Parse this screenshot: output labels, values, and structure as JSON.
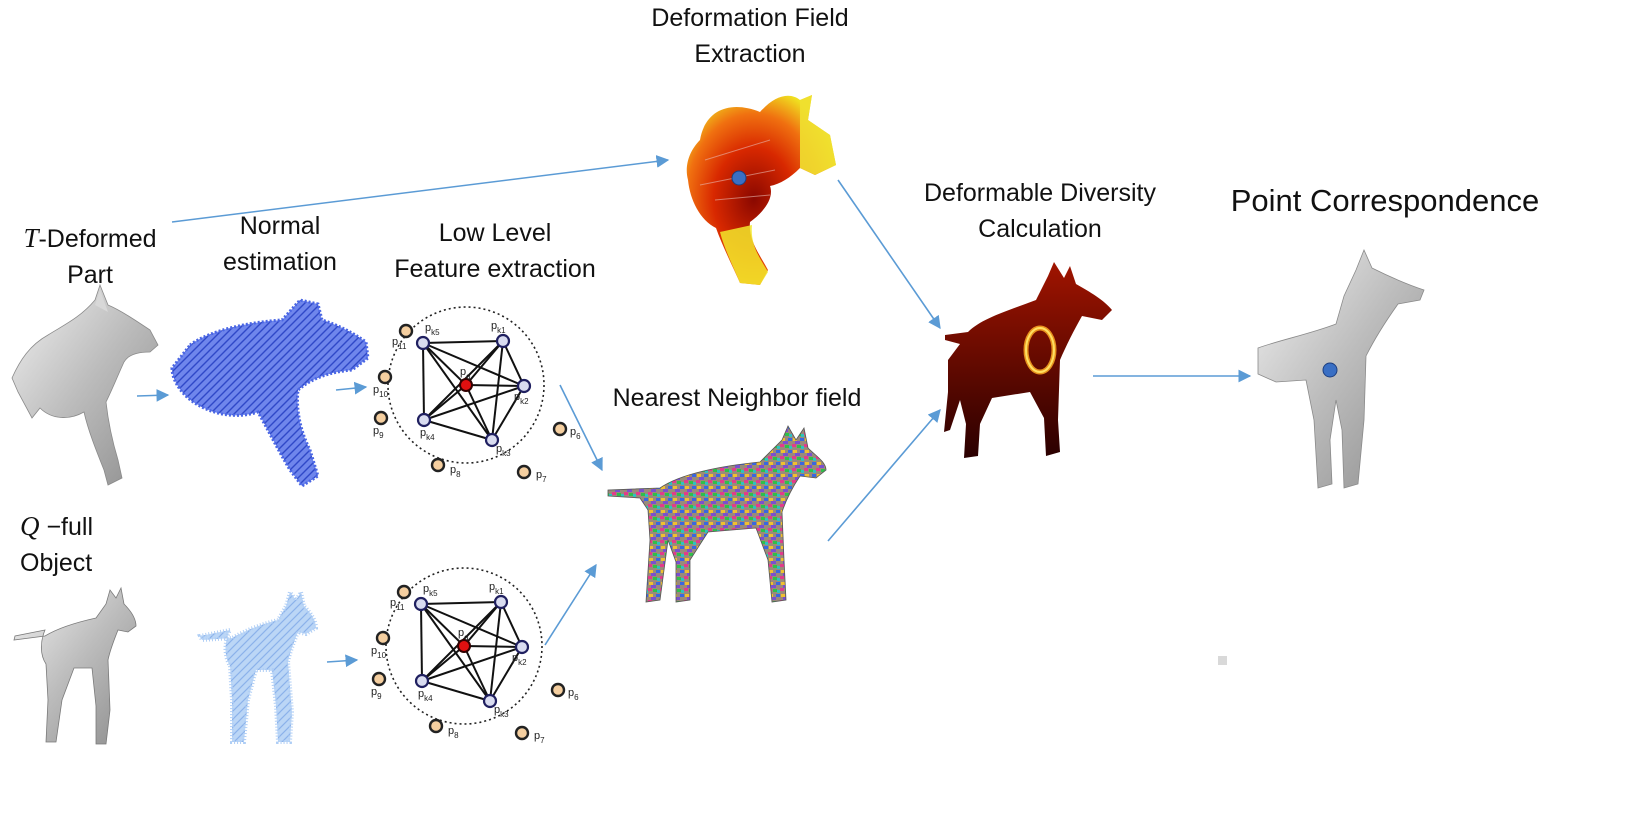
{
  "labels": {
    "deformation_field": [
      "Deformation Field",
      "Extraction"
    ],
    "t_deformed": {
      "var": "T",
      "rest": "-Deformed",
      "line2": "Part"
    },
    "normal": [
      "Normal",
      "estimation"
    ],
    "low_level": [
      "Low Level",
      "Feature extraction"
    ],
    "nearest_neighbor": "Nearest Neighbor field",
    "deformable_diversity": [
      "Deformable Diversity",
      "Calculation"
    ],
    "point_correspondence": "Point Correspondence",
    "q_full": {
      "var": "Q",
      "rest": " −full",
      "line2": "Object"
    }
  },
  "graph": {
    "center": "q",
    "inner_nodes": [
      "k1",
      "k2",
      "k3",
      "k4",
      "k5"
    ],
    "outer_nodes": [
      "6",
      "7",
      "8",
      "9",
      "10",
      "11"
    ],
    "node_prefix": "p"
  },
  "colors": {
    "arrow": "#5b9bd5",
    "normal_blue": "#5a78e6",
    "normal_light": "#9cc4f2",
    "heat_dark": "#7a0a00",
    "heat_mid": "#e03000",
    "heat_yellow": "#f0e020",
    "mesh_gray": "#bdbdbd",
    "inner_node_fill": "#d9dcf0",
    "outer_node_fill": "#f5cfa0",
    "center_node": "#e01010",
    "match_point": "#3a6fc4"
  }
}
